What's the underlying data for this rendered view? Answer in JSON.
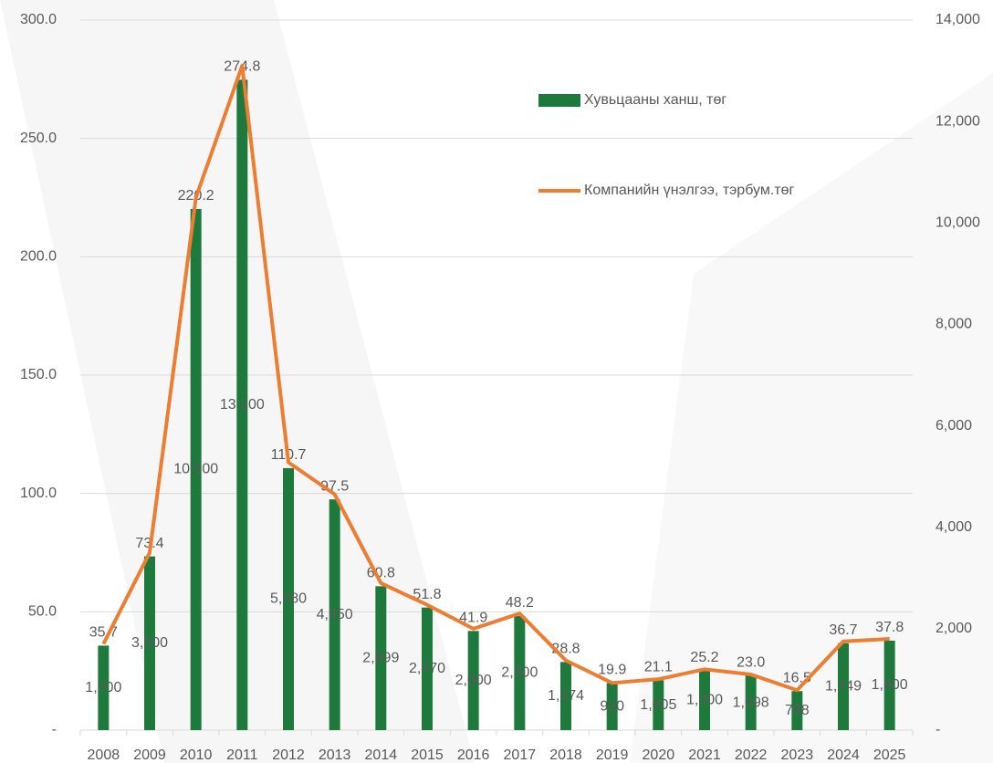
{
  "chart_data": {
    "type": "bar-line",
    "categories": [
      "2008",
      "2009",
      "2010",
      "2011",
      "2012",
      "2013",
      "2014",
      "2015",
      "2016",
      "2017",
      "2018",
      "2019",
      "2020",
      "2021",
      "2022",
      "2023",
      "2024",
      "2025"
    ],
    "series": [
      {
        "name": "Хувьцааны ханш, төг",
        "type": "bar",
        "color": "#1e7a3c",
        "values": [
          35.7,
          73.4,
          220.2,
          274.8,
          110.7,
          97.5,
          60.8,
          51.8,
          41.9,
          48.2,
          28.8,
          19.9,
          21.1,
          25.2,
          23.0,
          16.5,
          36.7,
          37.8
        ],
        "value_labels": [
          "35.7",
          "73.4",
          "220.2",
          "274.8",
          "110.7",
          "97.5",
          "60.8",
          "51.8",
          "41.9",
          "48.2",
          "28.8",
          "19.9",
          "21.1",
          "25.2",
          "23.0",
          "16.5",
          "36.7",
          "37.8"
        ]
      },
      {
        "name": "Компанийн үнэлгээ, тэрбум.төг",
        "type": "line",
        "axis": "y2",
        "color": "#ed7d31",
        "values": [
          1700,
          3500,
          10500,
          13100,
          5280,
          4650,
          2899,
          2470,
          2000,
          2300,
          1374,
          930,
          1005,
          1200,
          1098,
          788,
          1749,
          1800
        ],
        "value_labels": [
          "1,700",
          "3,500",
          "10,500",
          "13,100",
          "5,280",
          "4,650",
          "2,899",
          "2,470",
          "2,000",
          "2,300",
          "1,374",
          "930",
          "1,005",
          "1,200",
          "1,098",
          "788",
          "1,749",
          "1,800"
        ]
      }
    ],
    "ylim": [
      0,
      300
    ],
    "yticks": [
      {
        "value": 0,
        "label": "-"
      },
      {
        "value": 50,
        "label": "50.0"
      },
      {
        "value": 100,
        "label": "100.0"
      },
      {
        "value": 150,
        "label": "150.0"
      },
      {
        "value": 200,
        "label": "200.0"
      },
      {
        "value": 250,
        "label": "250.0"
      },
      {
        "value": 300,
        "label": "300.0"
      }
    ],
    "y2lim": [
      0,
      14000
    ],
    "y2ticks": [
      {
        "value": 0,
        "label": "-"
      },
      {
        "value": 2000,
        "label": "2,000"
      },
      {
        "value": 4000,
        "label": "4,000"
      },
      {
        "value": 6000,
        "label": "6,000"
      },
      {
        "value": 8000,
        "label": "8,000"
      },
      {
        "value": 10000,
        "label": "10,000"
      },
      {
        "value": 12000,
        "label": "12,000"
      },
      {
        "value": 14000,
        "label": "14,000"
      }
    ],
    "grid": true
  }
}
